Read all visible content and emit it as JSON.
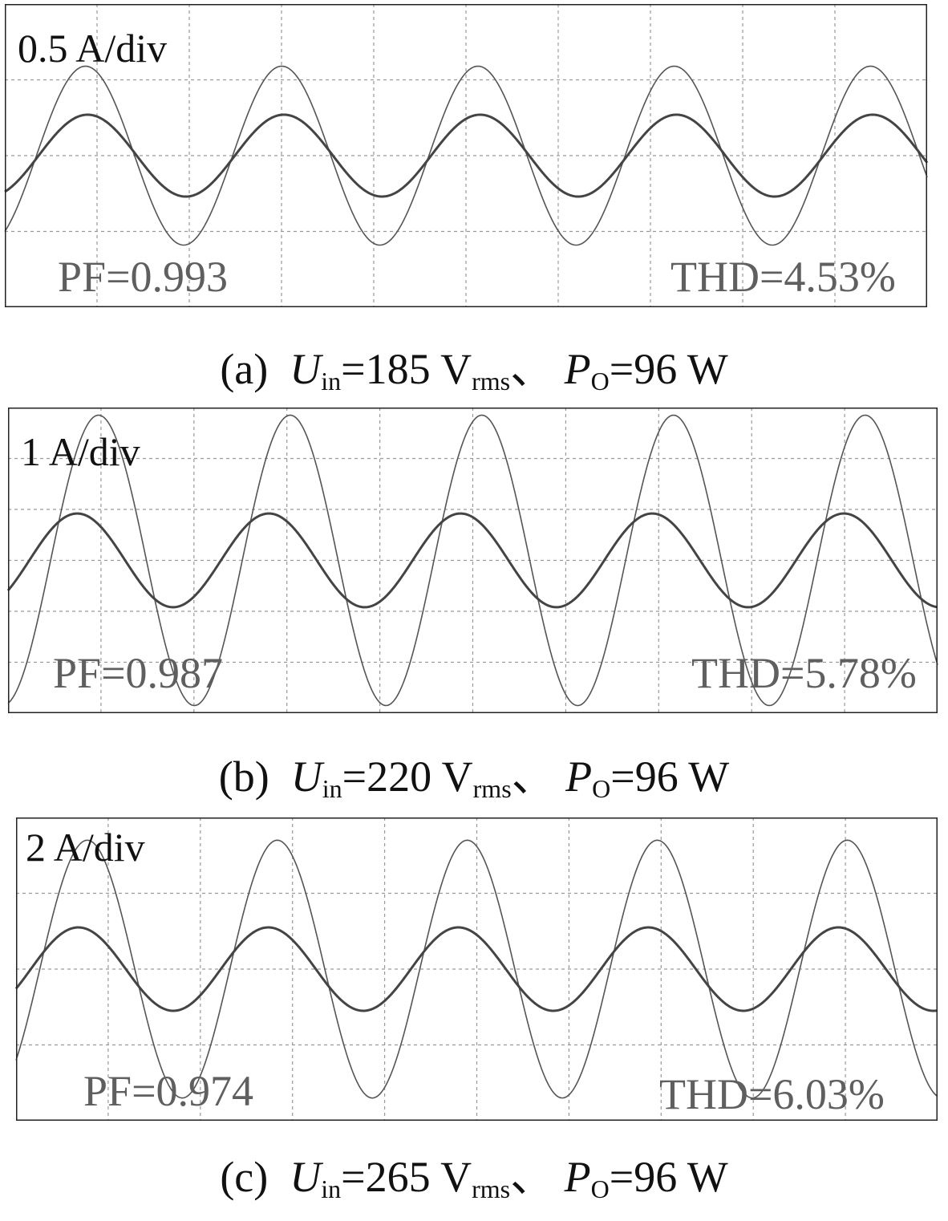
{
  "chart_data": [
    {
      "type": "line",
      "label": "(a)",
      "scale_label": "0.5 A/div",
      "pf_text": "PF=0.993",
      "thd_text": "THD=4.53%",
      "caption": {
        "panel": "(a)",
        "u_sym": "U",
        "u_sub": "in",
        "u_val": "=185 V",
        "u_unit_sub": "rms",
        "sep": "、",
        "p_sym": "P",
        "p_sub": "O",
        "p_val": "=96 W"
      },
      "divisions": {
        "x": 10,
        "y": 4
      },
      "cycles": 4.7,
      "x_range_div": [
        0,
        10
      ],
      "y_range_div": [
        -2,
        2
      ],
      "series": [
        {
          "amplitude_div": 1.18,
          "phase_deg": -58
        },
        {
          "amplitude_div": 0.54,
          "phase_deg": -62
        }
      ]
    },
    {
      "type": "line",
      "label": "(b)",
      "scale_label": "1 A/div",
      "pf_text": "PF=0.987",
      "thd_text": "THD=5.78%",
      "caption": {
        "panel": "(b)",
        "u_sym": "U",
        "u_sub": "in",
        "u_val": "=220 V",
        "u_unit_sub": "rms",
        "sep": "、",
        "p_sym": "P",
        "p_sub": "O",
        "p_val": "=96 W"
      },
      "divisions": {
        "x": 10,
        "y": 6
      },
      "cycles": 4.85,
      "x_range_div": [
        0,
        10
      ],
      "y_range_div": [
        -3,
        3
      ],
      "series": [
        {
          "amplitude_div": 2.85,
          "phase_deg": -80
        },
        {
          "amplitude_div": 0.92,
          "phase_deg": -40
        }
      ]
    },
    {
      "type": "line",
      "label": "(c)",
      "scale_label": "2 A/div",
      "pf_text": "PF=0.974",
      "thd_text": "THD=6.03%",
      "caption": {
        "panel": "(c)",
        "u_sym": "U",
        "u_sub": "in",
        "u_val": "=265 V",
        "u_unit_sub": "rms",
        "sep": "、",
        "p_sym": "P",
        "p_sub": "O",
        "p_val": "=96 W"
      },
      "divisions": {
        "x": 10,
        "y": 4
      },
      "cycles": 4.85,
      "x_range_div": [
        0,
        10
      ],
      "y_range_div": [
        -2,
        2
      ],
      "series": [
        {
          "amplitude_div": 1.7,
          "phase_deg": -45
        },
        {
          "amplitude_div": 0.55,
          "phase_deg": -28
        }
      ]
    }
  ]
}
